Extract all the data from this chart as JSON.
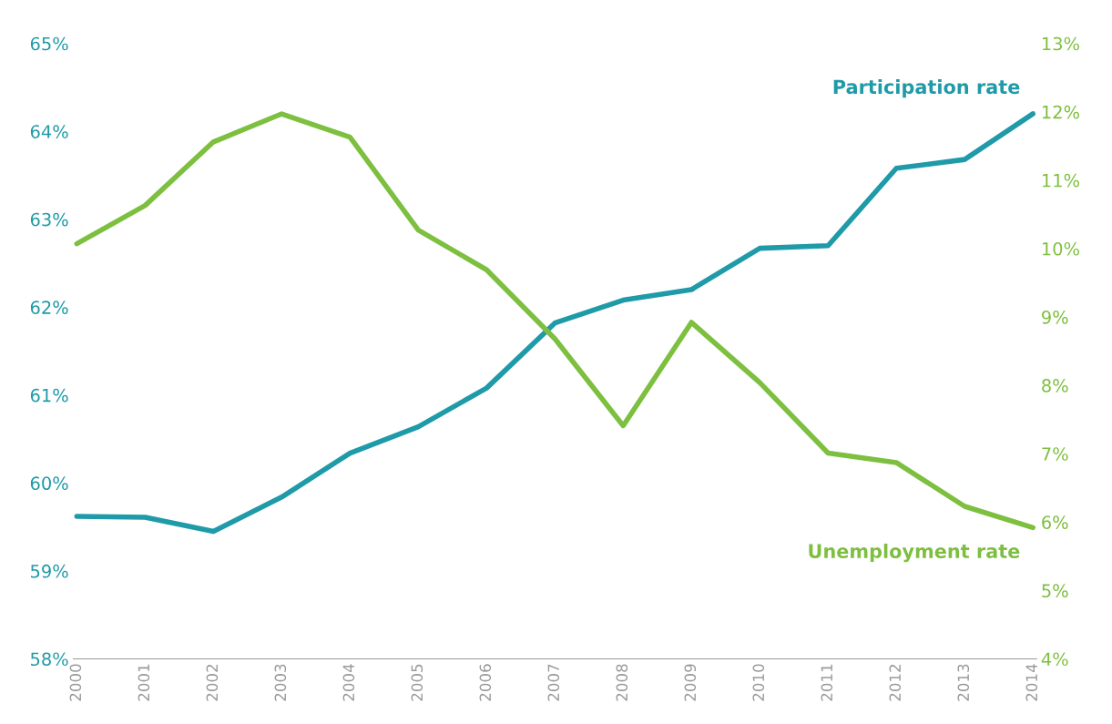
{
  "chart_data": {
    "type": "line",
    "categories": [
      "2000",
      "2001",
      "2002",
      "2003",
      "2004",
      "2005",
      "2006",
      "2007",
      "2008",
      "2009",
      "2010",
      "2011",
      "2012",
      "2013",
      "2014"
    ],
    "series": [
      {
        "name": "Participation rate",
        "color": "#1f9aa8",
        "values": [
          59.62,
          59.61,
          59.45,
          59.84,
          60.34,
          60.64,
          61.08,
          61.82,
          62.08,
          62.2,
          62.67,
          62.7,
          63.58,
          63.68,
          64.2
        ]
      },
      {
        "name": "Unemployment rate",
        "color": "#7dbf3f",
        "axis": "y2",
        "values": [
          10.07,
          10.63,
          11.56,
          11.97,
          11.63,
          10.27,
          9.69,
          8.68,
          7.41,
          8.92,
          8.04,
          7.01,
          6.87,
          6.23,
          5.92
        ]
      }
    ],
    "ylim": [
      58,
      65
    ],
    "yticks": [
      {
        "value": 58,
        "label": "58%"
      },
      {
        "value": 59,
        "label": "59%"
      },
      {
        "value": 60,
        "label": "60%"
      },
      {
        "value": 61,
        "label": "61%"
      },
      {
        "value": 62,
        "label": "62%"
      },
      {
        "value": 63,
        "label": "63%"
      },
      {
        "value": 64,
        "label": "64%"
      },
      {
        "value": 65,
        "label": "65%"
      }
    ],
    "y2lim": [
      4,
      13
    ],
    "y2ticks": [
      {
        "value": 4,
        "label": "4%"
      },
      {
        "value": 5,
        "label": "5%"
      },
      {
        "value": 6,
        "label": "6%"
      },
      {
        "value": 7,
        "label": "7%"
      },
      {
        "value": 8,
        "label": "8%"
      },
      {
        "value": 9,
        "label": "9%"
      },
      {
        "value": 10,
        "label": "10%"
      },
      {
        "value": 11,
        "label": "11%"
      },
      {
        "value": 12,
        "label": "12%"
      },
      {
        "value": 13,
        "label": "13%"
      }
    ],
    "grid": false,
    "legend": false,
    "marker": "none",
    "line_style": "solid"
  }
}
